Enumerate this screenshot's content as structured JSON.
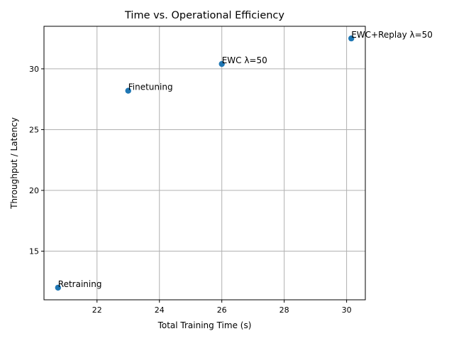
{
  "chart_data": {
    "type": "scatter",
    "title": "Time vs. Operational Efficiency",
    "xlabel": "Total Training Time (s)",
    "ylabel": "Throughput / Latency",
    "xlim": [
      20.3,
      30.6
    ],
    "ylim": [
      11.0,
      33.5
    ],
    "xticks": [
      22,
      24,
      26,
      28,
      30
    ],
    "yticks": [
      15,
      20,
      25,
      30
    ],
    "grid": true,
    "marker_color": "#1f77b4",
    "points": [
      {
        "label": "Retraining",
        "x": 20.75,
        "y": 12.0
      },
      {
        "label": "Finetuning",
        "x": 23.0,
        "y": 28.2
      },
      {
        "label": "EWC λ=50",
        "x": 26.0,
        "y": 30.4
      },
      {
        "label": "EWC+Replay λ=50",
        "x": 30.15,
        "y": 32.5
      }
    ]
  }
}
